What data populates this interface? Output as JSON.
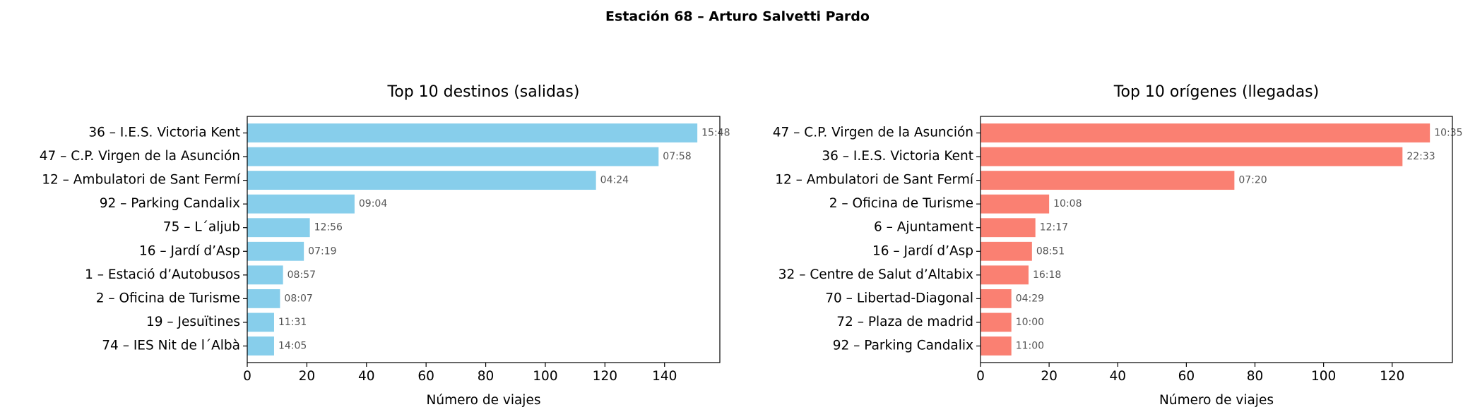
{
  "title": "Estación 68 – Arturo Salvetti Pardo",
  "chart_data": [
    {
      "type": "barh",
      "title": "Top 10 destinos (salidas)",
      "x_label": "Número de viajes",
      "color": "#87ceeb",
      "categories": [
        "36 – I.E.S. Victoria Kent",
        "47 – C.P. Virgen de la Asunción",
        "12 – Ambulatori de Sant Fermí",
        "92 – Parking Candalix",
        "75 – L´aljub",
        "16 – Jardí d’Asp",
        "1 – Estació d’Autobusos",
        "2 – Oficina de Turisme",
        "19 – Jesuïtines",
        "74 – IES Nit de l´Albà"
      ],
      "values": [
        151,
        138,
        117,
        36,
        21,
        19,
        12,
        11,
        9,
        9
      ],
      "bar_labels": [
        "15:48",
        "07:58",
        "04:24",
        "09:04",
        "12:56",
        "07:19",
        "08:57",
        "08:07",
        "11:31",
        "14:05"
      ],
      "xlim": [
        0,
        158.55
      ],
      "xticks": [
        0,
        20,
        40,
        60,
        80,
        100,
        120,
        140
      ]
    },
    {
      "type": "barh",
      "title": "Top 10 orígenes (llegadas)",
      "x_label": "Número de viajes",
      "color": "#fa8072",
      "categories": [
        "47 – C.P. Virgen de la Asunción",
        "36 – I.E.S. Victoria Kent",
        "12 – Ambulatori de Sant Fermí",
        "2 – Oficina de Turisme",
        "6 – Ajuntament",
        "16 – Jardí d’Asp",
        "32 – Centre de Salut d’Altabix",
        "70 – Libertad-Diagonal",
        "72 – Plaza de madrid",
        "92 – Parking Candalix"
      ],
      "values": [
        131,
        123,
        74,
        20,
        16,
        15,
        14,
        9,
        9,
        9
      ],
      "bar_labels": [
        "10:35",
        "22:33",
        "07:20",
        "10:08",
        "12:17",
        "08:51",
        "16:18",
        "04:29",
        "10:00",
        "11:00"
      ],
      "xlim": [
        0,
        137.55
      ],
      "xticks": [
        0,
        20,
        40,
        60,
        80,
        100,
        120
      ]
    }
  ]
}
